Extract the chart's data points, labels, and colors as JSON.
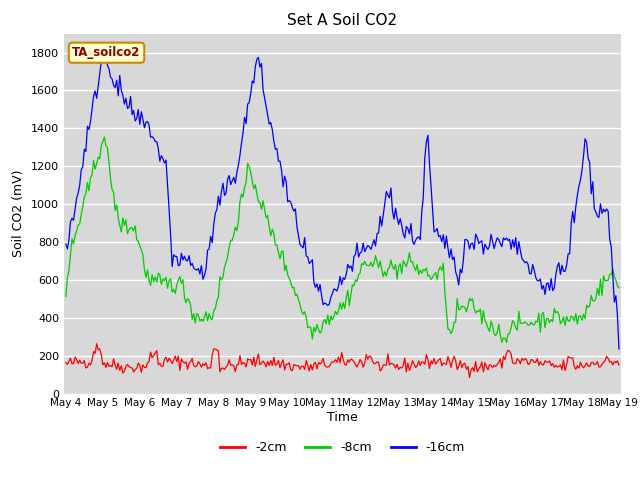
{
  "title": "Set A Soil CO2",
  "xlabel": "Time",
  "ylabel": "Soil CO2 (mV)",
  "ylim": [
    0,
    1900
  ],
  "yticks": [
    0,
    200,
    400,
    600,
    800,
    1000,
    1200,
    1400,
    1600,
    1800
  ],
  "color_2cm": "#ff0000",
  "color_8cm": "#00cc00",
  "color_16cm": "#0000ff",
  "legend_label_2cm": "-2cm",
  "legend_label_8cm": "-8cm",
  "legend_label_16cm": "-16cm",
  "annotation_text": "TA_soilco2",
  "annotation_bg": "#ffffcc",
  "annotation_border": "#cc8800",
  "fig_bg": "#ffffff",
  "plot_bg": "#d8d8d8",
  "grid_color": "#ffffff",
  "n_points": 360,
  "x_start": 4,
  "x_end": 19,
  "xtick_labels": [
    "May 4",
    "May 5",
    "May 6",
    "May 7",
    "May 8",
    "May 9",
    "May 10",
    "May 11",
    "May 12",
    "May 13",
    "May 14",
    "May 15",
    "May 16",
    "May 17",
    "May 18",
    "May 19"
  ],
  "xtick_positions": [
    4,
    5,
    6,
    7,
    8,
    9,
    10,
    11,
    12,
    13,
    14,
    15,
    16,
    17,
    18,
    19
  ]
}
